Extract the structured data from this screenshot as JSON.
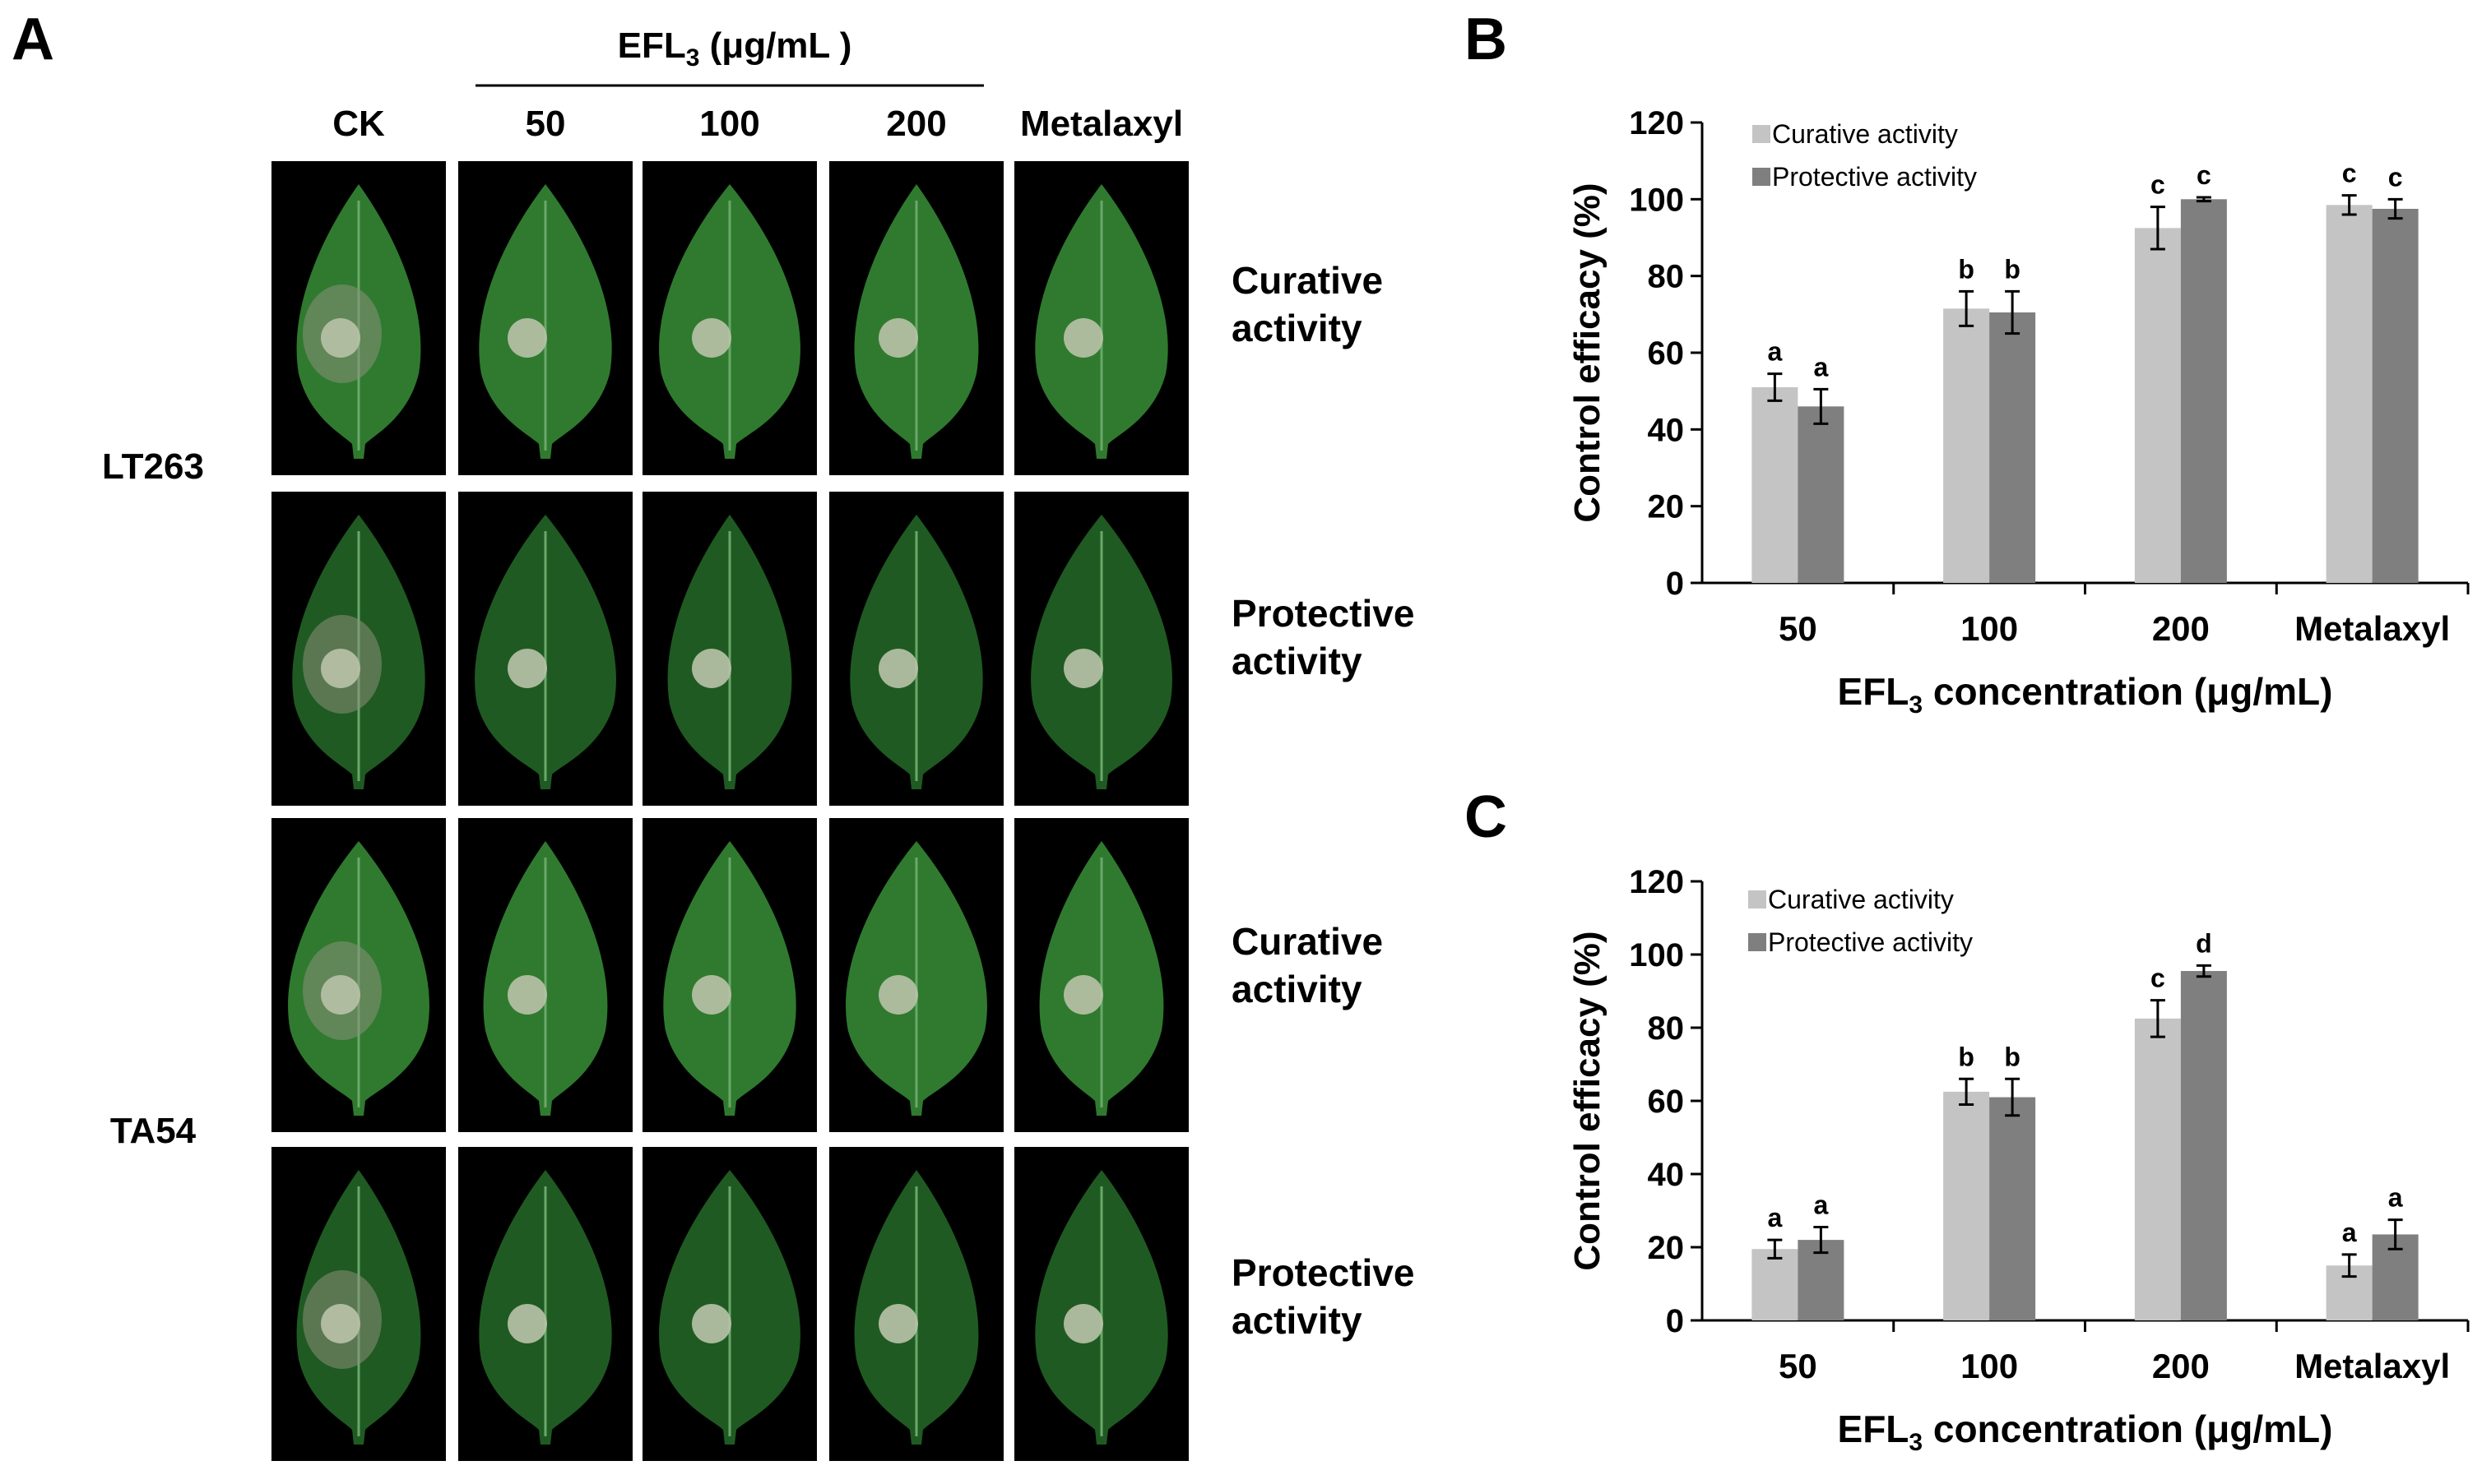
{
  "panel_a": {
    "label": "A",
    "header_group": "EFL",
    "header_group_sub": "3",
    "header_group_unit": " (μg/mL )",
    "columns": [
      "CK",
      "50",
      "100",
      "200",
      "Metalaxyl"
    ],
    "strains": [
      "LT263",
      "TA54"
    ],
    "rows": [
      {
        "activity_line1": "Curative",
        "activity_line2": "activity"
      },
      {
        "activity_line1": "Protective",
        "activity_line2": "activity"
      },
      {
        "activity_line1": "Curative",
        "activity_line2": "activity"
      },
      {
        "activity_line1": "Protective",
        "activity_line2": "activity"
      }
    ],
    "colors": {
      "photo_bg": "#000000",
      "leaf": "#2f7a2f",
      "leaf_dark": "#1f5a22",
      "lesion": "#b9c2a8"
    }
  },
  "chart_data": [
    {
      "panel_label": "B",
      "type": "bar",
      "categories": [
        "50",
        "100",
        "200",
        "Metalaxyl"
      ],
      "ylabel": "Control efficacy (%)",
      "xlabel": "EFL",
      "xlabel_sub": "3",
      "xlabel_rest": " concentration (μg/mL)",
      "ylim": [
        0,
        120
      ],
      "yticks": [
        0,
        20,
        40,
        60,
        80,
        100,
        120
      ],
      "legend_position": "top-left",
      "series": [
        {
          "name": "Curative activity",
          "color": "#c4c4c4",
          "values": [
            51,
            71.5,
            92.5,
            98.5
          ],
          "errors": [
            3.5,
            4.5,
            5.5,
            2.5
          ],
          "letters": [
            "a",
            "b",
            "c",
            "c"
          ]
        },
        {
          "name": "Protective activity",
          "color": "#7f7f7f",
          "values": [
            46,
            70.5,
            100,
            97.5
          ],
          "errors": [
            4.5,
            5.5,
            0.5,
            2.5
          ],
          "letters": [
            "a",
            "b",
            "c",
            "c"
          ]
        }
      ]
    },
    {
      "panel_label": "C",
      "type": "bar",
      "categories": [
        "50",
        "100",
        "200",
        "Metalaxyl"
      ],
      "ylabel": "Control efficacy (%)",
      "xlabel": "EFL",
      "xlabel_sub": "3",
      "xlabel_rest": " concentration (μg/mL)",
      "ylim": [
        0,
        120
      ],
      "yticks": [
        0,
        20,
        40,
        60,
        80,
        100,
        120
      ],
      "legend_position": "top-left",
      "series": [
        {
          "name": "Curative activity",
          "color": "#c4c4c4",
          "values": [
            19.5,
            62.5,
            82.5,
            15
          ],
          "errors": [
            2.5,
            3.5,
            5,
            3
          ],
          "letters": [
            "a",
            "b",
            "c",
            "a"
          ]
        },
        {
          "name": "Protective activity",
          "color": "#7f7f7f",
          "values": [
            22,
            61,
            95.5,
            23.5
          ],
          "errors": [
            3.5,
            5,
            1.5,
            4
          ],
          "letters": [
            "a",
            "b",
            "d",
            "a"
          ]
        }
      ]
    }
  ]
}
